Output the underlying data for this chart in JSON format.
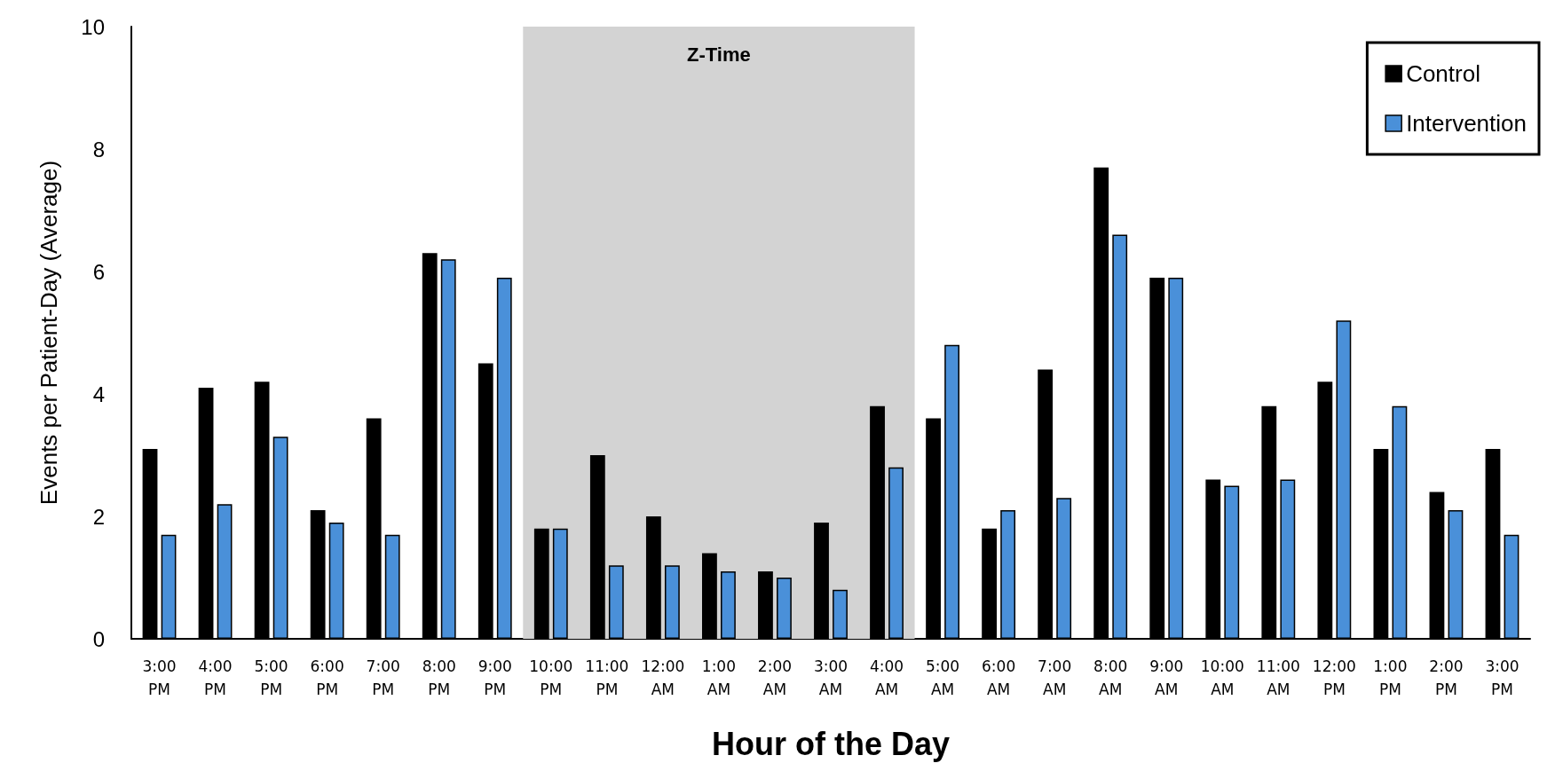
{
  "chart_data": {
    "type": "bar",
    "xlabel": "Hour of the Day",
    "ylabel": "Events per Patient-Day (Average)",
    "categories": [
      "3:00 PM",
      "4:00 PM",
      "5:00 PM",
      "6:00 PM",
      "7:00 PM",
      "8:00 PM",
      "9:00 PM",
      "10:00 PM",
      "11:00 PM",
      "12:00 AM",
      "1:00 AM",
      "2:00 AM",
      "3:00 AM",
      "4:00 AM",
      "5:00 AM",
      "6:00 AM",
      "7:00 AM",
      "8:00 AM",
      "9:00 AM",
      "10:00 AM",
      "11:00 AM",
      "12:00 PM",
      "1:00 PM",
      "2:00 PM",
      "3:00 PM"
    ],
    "series": [
      {
        "name": "Control",
        "color": "#000000",
        "values": [
          3.1,
          4.1,
          4.2,
          2.1,
          3.6,
          6.3,
          4.5,
          1.8,
          3.0,
          2.0,
          1.4,
          1.1,
          1.9,
          3.8,
          3.6,
          1.8,
          4.4,
          7.7,
          5.9,
          2.6,
          3.8,
          4.2,
          3.1,
          2.4,
          3.1
        ]
      },
      {
        "name": "Intervention",
        "color": "#4a90d9",
        "values": [
          1.7,
          2.2,
          3.3,
          1.9,
          1.7,
          6.2,
          5.9,
          1.8,
          1.2,
          1.2,
          1.1,
          1.0,
          0.8,
          2.8,
          4.8,
          2.1,
          2.3,
          6.6,
          5.9,
          2.5,
          2.6,
          5.2,
          3.8,
          2.1,
          1.7
        ]
      }
    ],
    "ylim": [
      0,
      10
    ],
    "yticks": [
      0,
      2,
      4,
      6,
      8,
      10
    ],
    "grid": false,
    "legend": "top right",
    "bands": [
      {
        "axis": "x",
        "from": "10:00 PM",
        "to": "4:00 AM",
        "label": "Z-Time",
        "color": "#d3d3d3"
      }
    ]
  }
}
